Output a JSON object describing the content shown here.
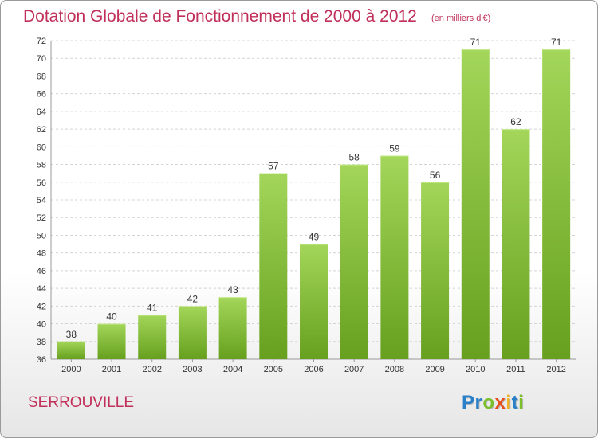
{
  "chart_data": {
    "type": "bar",
    "title": "Dotation Globale de Fonctionnement de 2000 à 2012",
    "subtitle": "(en milliers d'€)",
    "categories": [
      "2000",
      "2001",
      "2002",
      "2003",
      "2004",
      "2005",
      "2006",
      "2007",
      "2008",
      "2009",
      "2010",
      "2011",
      "2012"
    ],
    "values": [
      38,
      40,
      41,
      42,
      43,
      57,
      49,
      58,
      59,
      56,
      71,
      62,
      71
    ],
    "value_labels": [
      "38",
      "40",
      "41",
      "42",
      "43",
      "57",
      "49",
      "58",
      "59",
      "56",
      "71",
      "62",
      "71"
    ],
    "ylim": [
      36,
      72
    ],
    "yticks": [
      "36",
      "38",
      "40",
      "42",
      "44",
      "46",
      "48",
      "50",
      "52",
      "54",
      "56",
      "58",
      "60",
      "62",
      "64",
      "66",
      "68",
      "70",
      "72"
    ],
    "xlabel": "",
    "ylabel": "",
    "grid": true,
    "colors": {
      "bar_top": "#a3d65a",
      "bar_bottom": "#66a01e",
      "title": "#c0305a",
      "grid": "#d4d4d4"
    }
  },
  "footer": {
    "commune": "SERROUVILLE",
    "brand_letters": [
      {
        "ch": "P",
        "color": "#2a7fc9"
      },
      {
        "ch": "r",
        "color": "#2a7fc9"
      },
      {
        "ch": "o",
        "color": "#7bbf2a"
      },
      {
        "ch": "x",
        "color": "#e84e1b"
      },
      {
        "ch": "i",
        "color": "#f3b21b"
      },
      {
        "ch": "t",
        "color": "#2a7fc9"
      },
      {
        "ch": "i",
        "color": "#7bbf2a"
      }
    ]
  }
}
